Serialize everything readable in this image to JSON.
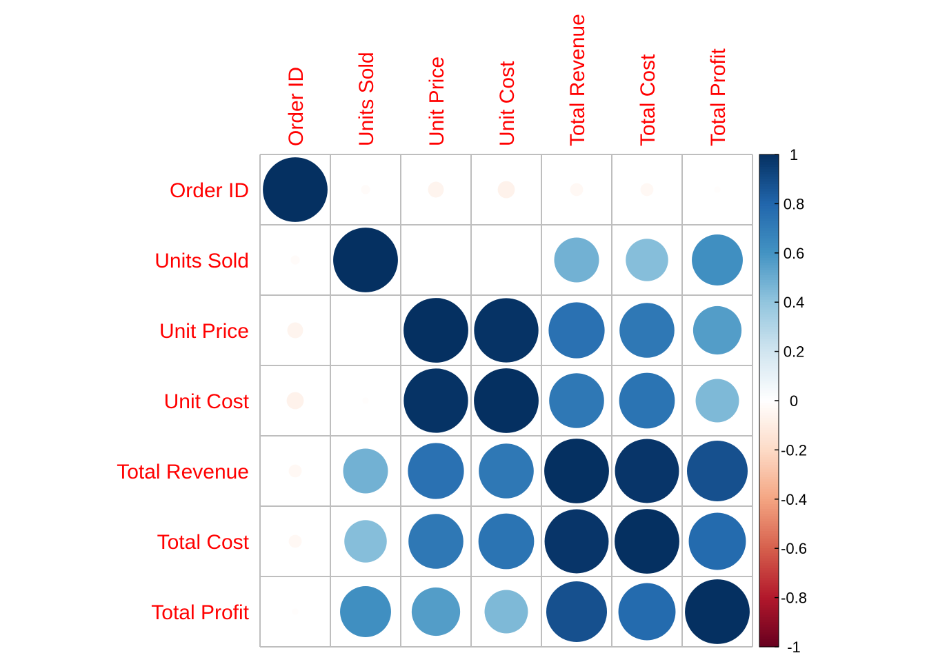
{
  "chart_data": {
    "type": "heatmap",
    "variables": [
      "Order ID",
      "Units Sold",
      "Unit Price",
      "Unit Cost",
      "Total Revenue",
      "Total Cost",
      "Total Profit"
    ],
    "matrix": [
      [
        1.0,
        -0.02,
        -0.06,
        -0.07,
        -0.04,
        -0.04,
        -0.01
      ],
      [
        -0.02,
        1.0,
        0.0,
        0.0,
        0.48,
        0.43,
        0.62
      ],
      [
        -0.06,
        0.0,
        1.0,
        0.99,
        0.75,
        0.72,
        0.56
      ],
      [
        -0.07,
        -0.01,
        0.99,
        1.0,
        0.72,
        0.74,
        0.45
      ],
      [
        -0.04,
        0.48,
        0.75,
        0.72,
        1.0,
        0.98,
        0.88
      ],
      [
        -0.04,
        0.43,
        0.72,
        0.74,
        0.98,
        1.0,
        0.78
      ],
      [
        -0.01,
        0.62,
        0.56,
        0.45,
        0.88,
        0.78,
        1.0
      ]
    ],
    "colorbar": {
      "min": -1,
      "max": 1,
      "ticks": [
        "1",
        "0.8",
        "0.6",
        "0.4",
        "0.2",
        "0",
        "-0.2",
        "-0.4",
        "-0.6",
        "-0.8",
        "-1"
      ]
    },
    "label_color": "#ff0000",
    "grid": true
  }
}
